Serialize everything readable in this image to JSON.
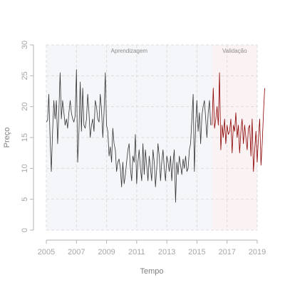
{
  "chart_data": {
    "type": "line",
    "title": "",
    "xlabel": "Tempo",
    "ylabel": "Preço",
    "xlim": [
      2005,
      2019
    ],
    "ylim": [
      0,
      30
    ],
    "x_ticks": [
      "2005",
      "2007",
      "2009",
      "2011",
      "2013",
      "2015",
      "2017",
      "2019"
    ],
    "y_ticks": [
      "0",
      "5",
      "10",
      "15",
      "20",
      "25",
      "30"
    ],
    "grid": true,
    "regions": [
      {
        "label": "Aprendizagem",
        "start": 2005,
        "end": 2016,
        "color": "#f5f6fa"
      },
      {
        "label": "Validação",
        "start": 2016,
        "end": 2019,
        "color": "#fbf3f3"
      }
    ],
    "series": [
      {
        "color": "#333333",
        "start": 2005.0,
        "step": 0.0833,
        "values": [
          17.5,
          17.8,
          22.0,
          15.0,
          9.5,
          16.0,
          21.0,
          18.0,
          21.0,
          14.0,
          19.0,
          25.5,
          18.0,
          21.0,
          19.0,
          17.0,
          18.0,
          16.5,
          19.0,
          21.0,
          19.0,
          18.0,
          17.5,
          18.5,
          26.0,
          11.0,
          16.0,
          24.0,
          16.0,
          23.0,
          17.0,
          16.5,
          18.0,
          22.0,
          19.0,
          15.0,
          17.0,
          18.0,
          16.0,
          21.0,
          20.0,
          18.0,
          17.5,
          22.0,
          19.5,
          15.0,
          19.0,
          25.5,
          17.0,
          16.0,
          12.0,
          13.5,
          11.0,
          16.5,
          14.0,
          13.0,
          9.5,
          11.0,
          11.5,
          10.0,
          7.0,
          11.0,
          7.5,
          9.0,
          11.0,
          13.0,
          14.0,
          10.0,
          8.0,
          12.0,
          11.0,
          15.5,
          7.5,
          11.0,
          13.0,
          10.0,
          8.0,
          14.0,
          9.0,
          13.0,
          10.5,
          8.0,
          12.0,
          10.0,
          8.0,
          13.0,
          11.0,
          7.0,
          10.0,
          14.0,
          12.0,
          8.0,
          11.0,
          13.0,
          10.0,
          8.0,
          12.0,
          11.0,
          9.5,
          12.0,
          8.0,
          11.0,
          13.0,
          4.5,
          11.0,
          9.0,
          12.0,
          10.5,
          9.0,
          11.5,
          10.0,
          12.0,
          9.5,
          10.0,
          13.0,
          14.0,
          18.0,
          22.0,
          9.5,
          17.0,
          21.0,
          16.0,
          19.0,
          14.0,
          18.5,
          20.0,
          21.0,
          18.0,
          15.0,
          19.0,
          21.0,
          17.0
        ]
      },
      {
        "color": "#8b0000",
        "start": 2016.0,
        "step": 0.0833,
        "values": [
          17.0,
          23.0,
          16.5,
          18.0,
          20.0,
          17.0,
          25.5,
          13.0,
          17.0,
          15.0,
          18.0,
          14.0,
          17.0,
          15.5,
          16.0,
          18.0,
          12.5,
          17.0,
          16.0,
          19.0,
          15.0,
          17.0,
          12.5,
          16.0,
          18.0,
          14.0,
          17.0,
          15.0,
          13.0,
          16.5,
          17.0,
          12.0,
          18.0,
          9.5,
          13.0,
          16.0,
          11.0,
          15.0,
          18.0,
          10.5,
          14.0,
          19.0,
          23.0
        ]
      }
    ]
  }
}
